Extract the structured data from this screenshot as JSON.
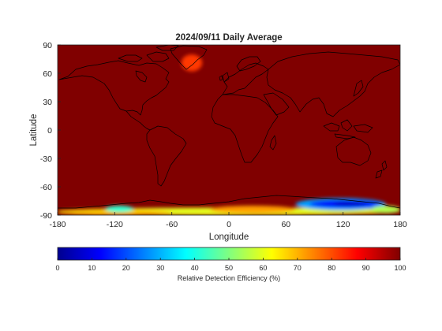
{
  "figure": {
    "title": "2024/09/11 Daily Average",
    "xlabel": "Longitude",
    "ylabel": "Latitude",
    "x_ticks": [
      "-180",
      "-120",
      "-60",
      "0",
      "60",
      "120",
      "180"
    ],
    "y_ticks": [
      "90",
      "60",
      "30",
      "0",
      "-30",
      "-60",
      "-90"
    ],
    "colorbar": {
      "label": "Relative Detection Efficiency (%)",
      "ticks": [
        "0",
        "10",
        "20",
        "30",
        "40",
        "50",
        "60",
        "70",
        "80",
        "90",
        "100"
      ],
      "colormap": "jet",
      "range": [
        0,
        100
      ]
    }
  },
  "chart_data": {
    "type": "heatmap",
    "title": "2024/09/11 Daily Average",
    "xlabel": "Longitude",
    "ylabel": "Latitude",
    "xlim": [
      -180,
      180
    ],
    "ylim": [
      -90,
      90
    ],
    "colorbar_label": "Relative Detection Efficiency (%)",
    "clim": [
      0,
      100
    ],
    "background_value": 100,
    "regions": [
      {
        "lon": [
          -50,
          -28
        ],
        "lat": [
          62,
          80
        ],
        "value": 82
      },
      {
        "lon": [
          -180,
          180
        ],
        "lat": [
          -90,
          -82
        ],
        "value": 60
      },
      {
        "lon": [
          -180,
          -60
        ],
        "lat": [
          -90,
          -84
        ],
        "value": 68
      },
      {
        "lon": [
          -130,
          -100
        ],
        "lat": [
          -87,
          -80
        ],
        "value": 42
      },
      {
        "lon": [
          -20,
          70
        ],
        "lat": [
          -88,
          -80
        ],
        "value": 72
      },
      {
        "lon": [
          70,
          165
        ],
        "lat": [
          -85,
          -72
        ],
        "value": 28
      },
      {
        "lon": [
          85,
          160
        ],
        "lat": [
          -82,
          -74
        ],
        "value": 12
      },
      {
        "lon": [
          110,
          145
        ],
        "lat": [
          -80,
          -76
        ],
        "value": 5
      },
      {
        "lon": [
          150,
          180
        ],
        "lat": [
          -88,
          -80
        ],
        "value": 55
      }
    ]
  }
}
